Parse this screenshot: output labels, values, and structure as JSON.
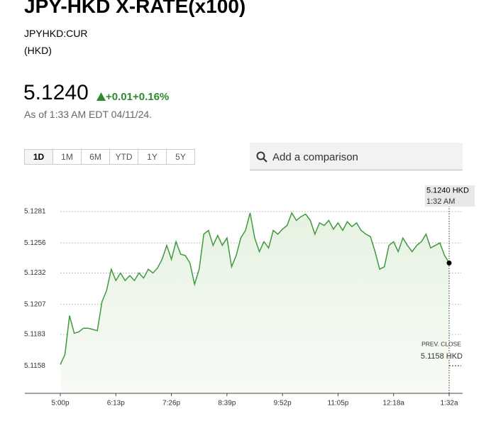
{
  "header": {
    "title": "JPY-HKD X-RATE(x100)",
    "ticker": "JPYHKD:CUR",
    "currency": "(HKD)"
  },
  "quote": {
    "price": "5.1240",
    "change": "+0.01",
    "change_percent": "+0.16%",
    "as_of": "As of 1:33 AM EDT 04/11/24."
  },
  "ranges": {
    "options": [
      "1D",
      "1M",
      "6M",
      "YTD",
      "1Y",
      "5Y"
    ],
    "selected": 0
  },
  "search": {
    "placeholder": "Add a comparison"
  },
  "chart_data": {
    "type": "line",
    "categories": [
      "5:00p",
      null,
      null,
      null,
      null,
      null,
      null,
      null,
      null,
      null,
      null,
      null,
      "6:13p",
      null,
      null,
      null,
      null,
      null,
      null,
      null,
      null,
      null,
      null,
      null,
      "7:26p",
      null,
      null,
      null,
      null,
      null,
      null,
      null,
      null,
      null,
      null,
      null,
      "8:39p",
      null,
      null,
      null,
      null,
      null,
      null,
      null,
      null,
      null,
      null,
      null,
      "9:52p",
      null,
      null,
      null,
      null,
      null,
      null,
      null,
      null,
      null,
      null,
      null,
      "11:05p",
      null,
      null,
      null,
      null,
      null,
      null,
      null,
      null,
      null,
      null,
      null,
      "12:18a",
      null,
      null,
      null,
      null,
      null,
      null,
      null,
      null,
      null,
      null,
      null,
      "1:32a"
    ],
    "values": [
      5.1159,
      5.1167,
      5.1198,
      5.1184,
      5.1185,
      5.1188,
      5.1188,
      5.1187,
      5.1186,
      5.1209,
      5.1218,
      5.1235,
      5.1226,
      5.1232,
      5.1226,
      5.123,
      5.1226,
      5.1232,
      5.1228,
      5.1235,
      5.1232,
      5.1236,
      5.1243,
      5.1254,
      5.1243,
      5.1257,
      5.1247,
      5.1246,
      5.124,
      5.1223,
      5.1235,
      5.1263,
      5.1266,
      5.1254,
      5.1262,
      5.1254,
      5.126,
      5.1237,
      5.1246,
      5.126,
      5.1266,
      5.128,
      5.126,
      5.1249,
      5.1257,
      5.1252,
      5.1266,
      5.1263,
      5.1267,
      5.127,
      5.128,
      5.1274,
      5.1277,
      5.1279,
      5.1274,
      5.1263,
      5.1272,
      5.127,
      5.1274,
      5.1267,
      5.1272,
      5.1266,
      5.1273,
      5.1269,
      5.1272,
      5.1266,
      5.1263,
      5.1261,
      5.1249,
      5.1235,
      5.1237,
      5.1254,
      5.1257,
      5.1249,
      5.126,
      5.1254,
      5.1249,
      5.1254,
      5.1257,
      5.1263,
      5.1252,
      5.1254,
      5.1256,
      5.1246,
      5.124
    ],
    "color": "#3f9a3f",
    "ylim": [
      5.1136,
      5.13
    ],
    "yticks": [
      5.1158,
      5.1183,
      5.1207,
      5.1232,
      5.1256,
      5.1281
    ],
    "grid": true,
    "prev_close": {
      "title": "PREV. CLOSE",
      "value": 5.1158,
      "label": "5.1158 HKD"
    },
    "last_point": {
      "label": "5.1240 HKD",
      "time": "1:32 AM"
    }
  }
}
